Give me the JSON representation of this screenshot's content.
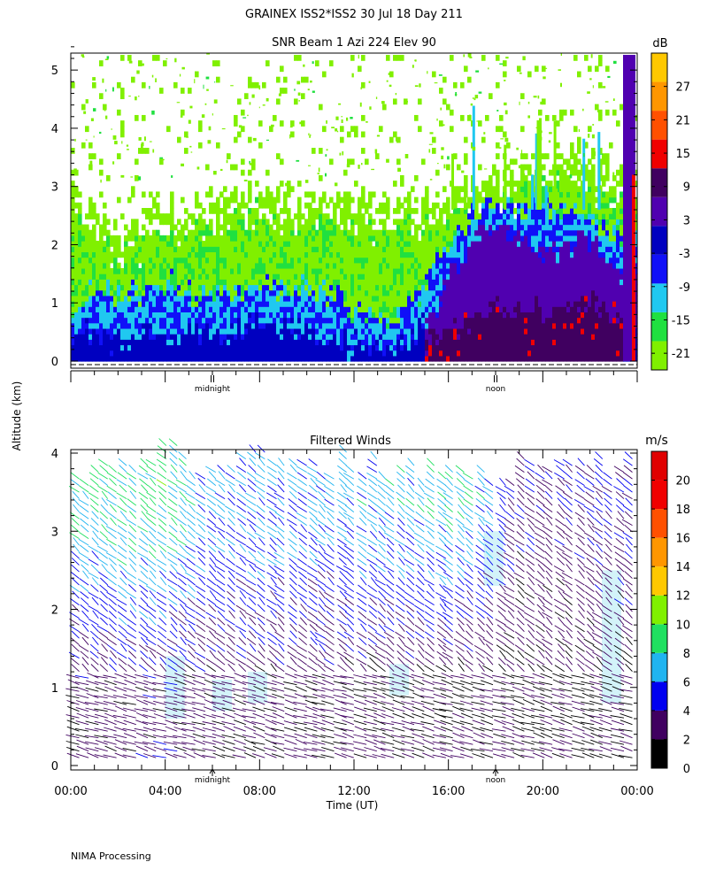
{
  "header": {
    "title": "GRAINEX ISS2*ISS2  30 Jul 18 Day 211",
    "footer": "NIMA Processing"
  },
  "shared": {
    "ylabel": "Altitude (km)",
    "xlabel": "Time (UT)",
    "time_ticks": [
      "00:00",
      "04:00",
      "08:00",
      "12:00",
      "16:00",
      "20:00",
      "00:00"
    ],
    "markers": [
      {
        "label": "midnight",
        "hour": 6
      },
      {
        "label": "noon",
        "hour": 18
      }
    ]
  },
  "chart_data": [
    {
      "type": "heatmap",
      "title": "SNR Beam 1 Azi 224 Elev 90",
      "xlabel": "",
      "ylabel": "Altitude (km)",
      "xlim": [
        0,
        24
      ],
      "ylim": [
        0,
        5.5
      ],
      "yticks": [
        0,
        1,
        2,
        3,
        4,
        5
      ],
      "colorbar": {
        "label": "dB",
        "ticks": [
          27,
          21,
          15,
          9,
          3,
          -3,
          -9,
          -15,
          -21
        ],
        "range": [
          -24,
          33
        ],
        "colors": [
          "#80f000",
          "#20e040",
          "#20c8f0",
          "#1010f8",
          "#0000c0",
          "#5000b0",
          "#400060",
          "#f00000",
          "#ff5000",
          "#ff9600",
          "#ffc800"
        ]
      },
      "profiles": [
        {
          "t": 0.0,
          "top": 3.3,
          "l1": 0.9,
          "l2": 0.45,
          "l3": 0.0
        },
        {
          "t": 1.0,
          "top": 2.6,
          "l1": 1.3,
          "l2": 0.6,
          "l3": 0.0
        },
        {
          "t": 2.0,
          "top": 2.3,
          "l1": 1.2,
          "l2": 0.5,
          "l3": 0.0
        },
        {
          "t": 3.0,
          "top": 2.6,
          "l1": 1.3,
          "l2": 0.6,
          "l3": 0.0
        },
        {
          "t": 4.0,
          "top": 2.8,
          "l1": 1.4,
          "l2": 0.6,
          "l3": 0.0
        },
        {
          "t": 6.0,
          "top": 2.9,
          "l1": 1.2,
          "l2": 0.5,
          "l3": 0.0
        },
        {
          "t": 8.0,
          "top": 3.0,
          "l1": 1.4,
          "l2": 0.7,
          "l3": 0.0
        },
        {
          "t": 10.0,
          "top": 2.9,
          "l1": 1.4,
          "l2": 0.6,
          "l3": 0.0
        },
        {
          "t": 12.0,
          "top": 2.8,
          "l1": 1.0,
          "l2": 0.4,
          "l3": 0.0
        },
        {
          "t": 13.0,
          "top": 2.7,
          "l1": 0.7,
          "l2": 0.3,
          "l3": 0.0
        },
        {
          "t": 14.0,
          "top": 2.8,
          "l1": 0.9,
          "l2": 0.4,
          "l3": 0.05
        },
        {
          "t": 15.0,
          "top": 2.8,
          "l1": 1.4,
          "l2": 0.8,
          "l3": 0.4
        },
        {
          "t": 16.0,
          "top": 2.9,
          "l1": 2.0,
          "l2": 1.5,
          "l3": 0.6
        },
        {
          "t": 17.0,
          "top": 3.1,
          "l1": 2.6,
          "l2": 2.2,
          "l3": 0.8
        },
        {
          "t": 18.0,
          "top": 3.3,
          "l1": 2.8,
          "l2": 2.4,
          "l3": 1.0
        },
        {
          "t": 20.0,
          "top": 3.6,
          "l1": 2.8,
          "l2": 2.0,
          "l3": 1.0
        },
        {
          "t": 22.0,
          "top": 3.6,
          "l1": 2.6,
          "l2": 2.2,
          "l3": 1.1
        },
        {
          "t": 23.4,
          "top": 3.3,
          "l1": 2.2,
          "l2": 1.4,
          "l3": 0.8
        }
      ]
    },
    {
      "type": "wind_barbs",
      "title": "Filtered Winds",
      "xlabel": "Time (UT)",
      "ylabel": "Altitude (km)",
      "xlim": [
        0,
        24
      ],
      "ylim": [
        0,
        4.2
      ],
      "yticks": [
        0,
        1,
        2,
        3,
        4
      ],
      "colorbar": {
        "label": "m/s",
        "ticks": [
          20,
          18,
          16,
          14,
          12,
          10,
          8,
          6,
          4,
          2,
          0
        ],
        "range": [
          0,
          22
        ],
        "colors": [
          "#000000",
          "#400060",
          "#0000f0",
          "#20b4f0",
          "#20e060",
          "#80f000",
          "#ffc800",
          "#ff9600",
          "#ff5000",
          "#f00000",
          "#e00000"
        ]
      },
      "speed_profiles": [
        {
          "t": 0.0,
          "low": 2.5,
          "high": 8.0,
          "top": 3.8
        },
        {
          "t": 4.0,
          "low": 3.0,
          "high": 9.0,
          "top": 4.2
        },
        {
          "t": 6.0,
          "low": 2.5,
          "high": 6.5,
          "top": 4.0
        },
        {
          "t": 10.0,
          "low": 2.5,
          "high": 6.5,
          "top": 4.1
        },
        {
          "t": 14.0,
          "low": 2.0,
          "high": 7.0,
          "top": 4.0
        },
        {
          "t": 17.0,
          "low": 2.0,
          "high": 8.0,
          "top": 3.8
        },
        {
          "t": 19.0,
          "low": 2.0,
          "high": 3.5,
          "top": 4.0
        },
        {
          "t": 24.0,
          "low": 2.0,
          "high": 4.0,
          "top": 4.0
        }
      ]
    }
  ]
}
